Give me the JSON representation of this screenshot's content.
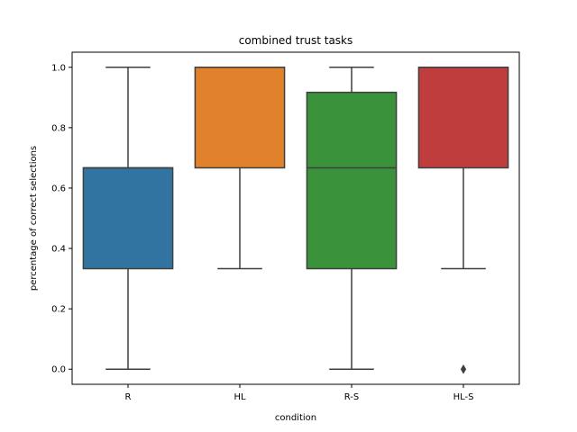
{
  "chart_data": {
    "type": "box",
    "title": "combined trust tasks",
    "xlabel": "condition",
    "ylabel": "percentage of correct selections",
    "ylim": [
      -0.05,
      1.05
    ],
    "yticks": [
      "0.0",
      "0.2",
      "0.4",
      "0.6",
      "0.8",
      "1.0"
    ],
    "grid": false,
    "categories": [
      "R",
      "HL",
      "R-S",
      "HL-S"
    ],
    "boxes": [
      {
        "category": "R",
        "whisker_low": 0.0,
        "q1": 0.333,
        "median": 0.667,
        "q3": 0.667,
        "whisker_high": 1.0,
        "outliers": [],
        "color": "#3274a1"
      },
      {
        "category": "HL",
        "whisker_low": 0.333,
        "q1": 0.667,
        "median": 1.0,
        "q3": 1.0,
        "whisker_high": 1.0,
        "outliers": [],
        "color": "#e1812c"
      },
      {
        "category": "R-S",
        "whisker_low": 0.0,
        "q1": 0.333,
        "median": 0.667,
        "q3": 0.917,
        "whisker_high": 1.0,
        "outliers": [],
        "color": "#3a923a"
      },
      {
        "category": "HL-S",
        "whisker_low": 0.333,
        "q1": 0.667,
        "median": 1.0,
        "q3": 1.0,
        "whisker_high": 1.0,
        "outliers": [
          0.0
        ],
        "color": "#c03d3e"
      }
    ],
    "line_color": "#3f3f3f"
  }
}
